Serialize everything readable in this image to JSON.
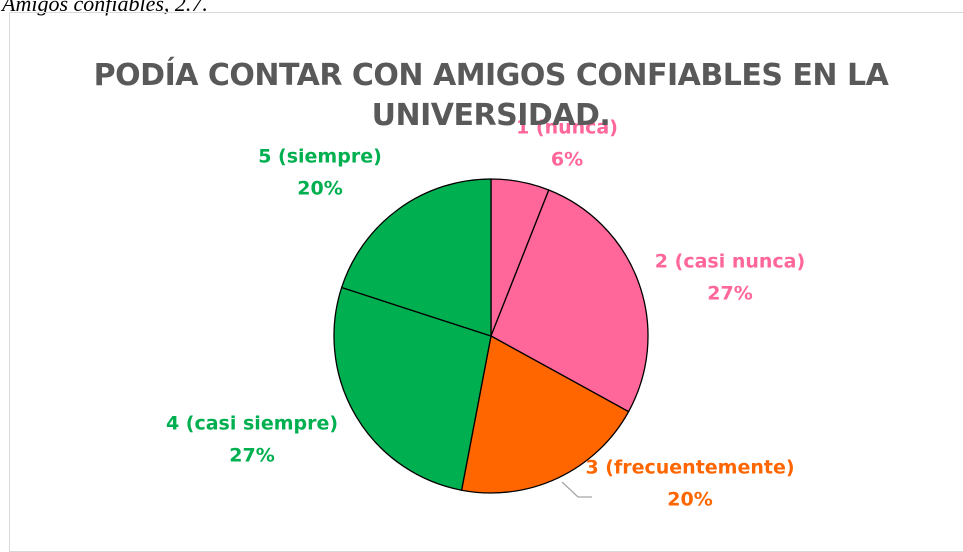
{
  "chart_data": {
    "type": "pie",
    "caption": "Amigos confiables, 2.7.",
    "title": "PODÍA CONTAR CON AMIGOS CONFIABLES EN LA UNIVERSIDAD.",
    "categories": [
      "1 (nunca)",
      "2 (casi nunca)",
      "3 (frecuentemente)",
      "4 (casi siempre)",
      "5 (siempre)"
    ],
    "values": [
      6,
      27,
      20,
      27,
      20
    ],
    "value_labels": [
      "6%",
      "27%",
      "20%",
      "27%",
      "20%"
    ],
    "colors": [
      "#ff6699",
      "#ff6699",
      "#ff6600",
      "#00b050",
      "#00b050"
    ]
  }
}
